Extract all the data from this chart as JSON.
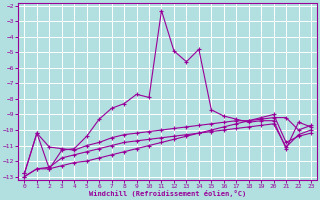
{
  "xlabel": "Windchill (Refroidissement éolien,°C)",
  "background_color": "#b2dfdf",
  "grid_color": "#ffffff",
  "line_color": "#990099",
  "xlim": [
    -0.5,
    23.5
  ],
  "ylim": [
    -13.2,
    -1.8
  ],
  "xticks": [
    0,
    1,
    2,
    3,
    4,
    5,
    6,
    7,
    8,
    9,
    10,
    11,
    12,
    13,
    14,
    15,
    16,
    17,
    18,
    19,
    20,
    21,
    22,
    23
  ],
  "yticks": [
    -13,
    -12,
    -11,
    -10,
    -9,
    -8,
    -7,
    -6,
    -5,
    -4,
    -3,
    -2
  ],
  "series": [
    {
      "x": [
        0,
        1,
        2,
        3,
        4,
        5,
        6,
        7,
        8,
        9,
        10,
        11,
        12,
        13,
        14,
        15,
        16,
        17,
        18,
        19,
        20,
        21,
        22,
        23
      ],
      "y": [
        -12.8,
        -10.2,
        -12.5,
        -11.3,
        -11.2,
        -10.4,
        -9.3,
        -8.6,
        -8.3,
        -7.7,
        -7.9,
        -2.3,
        -4.9,
        -5.6,
        -4.8,
        -8.7,
        -9.1,
        -9.3,
        -9.5,
        -9.4,
        -9.4,
        -11.2,
        -9.5,
        -9.8
      ]
    },
    {
      "x": [
        0,
        1,
        2,
        3,
        4,
        5,
        6,
        7,
        8,
        9,
        10,
        11,
        12,
        13,
        14,
        15,
        16,
        17,
        18,
        19,
        20,
        21,
        22,
        23
      ],
      "y": [
        -12.8,
        -10.2,
        -11.1,
        -11.2,
        -11.3,
        -11.0,
        -10.8,
        -10.5,
        -10.3,
        -10.2,
        -10.1,
        -10.0,
        -9.9,
        -9.8,
        -9.7,
        -9.6,
        -9.5,
        -9.4,
        -9.4,
        -9.3,
        -9.2,
        -9.2,
        -10.0,
        -9.7
      ]
    },
    {
      "x": [
        0,
        1,
        2,
        3,
        4,
        5,
        6,
        7,
        8,
        9,
        10,
        11,
        12,
        13,
        14,
        15,
        16,
        17,
        18,
        19,
        20,
        21,
        22,
        23
      ],
      "y": [
        -13.0,
        -12.5,
        -12.4,
        -11.8,
        -11.6,
        -11.4,
        -11.2,
        -11.0,
        -10.8,
        -10.7,
        -10.6,
        -10.5,
        -10.4,
        -10.3,
        -10.2,
        -10.1,
        -10.0,
        -9.9,
        -9.8,
        -9.7,
        -9.6,
        -11.1,
        -10.3,
        -10.0
      ]
    },
    {
      "x": [
        0,
        1,
        2,
        3,
        4,
        5,
        6,
        7,
        8,
        9,
        10,
        11,
        12,
        13,
        14,
        15,
        16,
        17,
        18,
        19,
        20,
        21,
        22,
        23
      ],
      "y": [
        -13.0,
        -12.5,
        -12.5,
        -12.3,
        -12.1,
        -12.0,
        -11.8,
        -11.6,
        -11.4,
        -11.2,
        -11.0,
        -10.8,
        -10.6,
        -10.4,
        -10.2,
        -10.0,
        -9.8,
        -9.6,
        -9.4,
        -9.2,
        -9.0,
        -10.8,
        -10.4,
        -10.2
      ]
    }
  ]
}
